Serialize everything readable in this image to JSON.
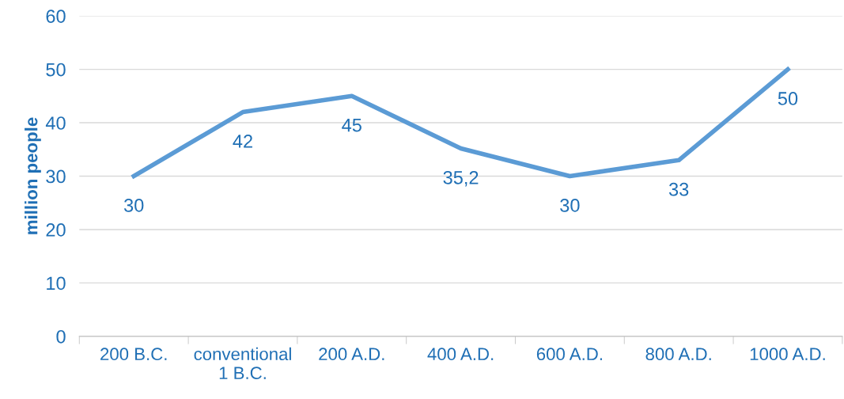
{
  "chart_data": {
    "type": "line",
    "ylabel": "million people",
    "categories": [
      "200 B.C.",
      "conventional\n1 B.C.",
      "200 A.D.",
      "400 A.D.",
      "600 A.D.",
      "800 A.D.",
      "1000 A.D."
    ],
    "series": [
      {
        "color": "#5b9bd5",
        "values": [
          30,
          42,
          45,
          35.2,
          30,
          33,
          50
        ],
        "value_labels": [
          "30",
          "42",
          "45",
          "35,2",
          "30",
          "33",
          "50"
        ]
      }
    ],
    "ylim": [
      0,
      60
    ],
    "yticks": [
      0,
      10,
      20,
      30,
      40,
      50,
      60
    ],
    "grid": "y",
    "marker": "none",
    "line_style": "solid"
  }
}
